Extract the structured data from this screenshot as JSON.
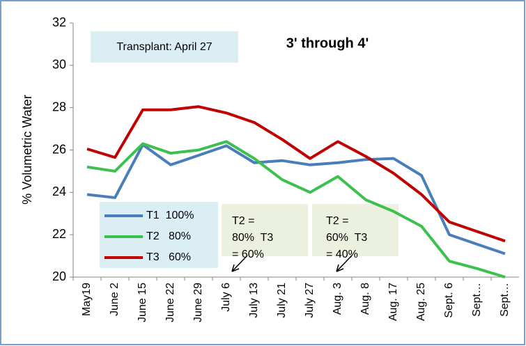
{
  "chart_data": {
    "type": "line",
    "title": "3' through 4'",
    "y_label": "% Volumetric Water",
    "categories": [
      "May19",
      "June 2",
      "June 15",
      "June 22",
      "June 29",
      "July 6",
      "July 13",
      "July 21",
      "July 27",
      "Aug. 3",
      "Aug. 8",
      "Aug. 17",
      "Aug. 25",
      "Sept. 6",
      "Sept…",
      "Sept…"
    ],
    "series": [
      {
        "name": "T1  100%",
        "color": "#4a7ebb",
        "values": [
          23.9,
          23.75,
          26.25,
          25.3,
          25.75,
          26.2,
          25.4,
          25.5,
          25.3,
          25.4,
          25.55,
          25.6,
          24.8,
          22.0,
          21.55,
          21.1
        ]
      },
      {
        "name": "T2   80%",
        "color": "#3cc04e",
        "values": [
          25.2,
          25.0,
          26.3,
          25.85,
          26.0,
          26.4,
          25.6,
          24.6,
          24.0,
          24.75,
          23.65,
          23.1,
          22.4,
          20.75,
          20.4,
          20.0
        ]
      },
      {
        "name": "T3   60%",
        "color": "#c00000",
        "values": [
          26.05,
          25.65,
          27.9,
          27.9,
          28.05,
          27.75,
          27.3,
          26.5,
          25.6,
          26.4,
          25.7,
          24.9,
          23.9,
          22.6,
          22.15,
          21.7
        ]
      }
    ],
    "ylim": [
      20,
      32
    ],
    "yticks": [
      20,
      22,
      24,
      26,
      28,
      30,
      32
    ],
    "grid": false,
    "annotations": [
      {
        "text": "Transplant: April 27"
      },
      {
        "lines": [
          "T2 =",
          "80%  T3",
          "= 60%"
        ]
      },
      {
        "lines": [
          "T2 =",
          "60%  T3",
          "= 40%"
        ]
      }
    ]
  }
}
